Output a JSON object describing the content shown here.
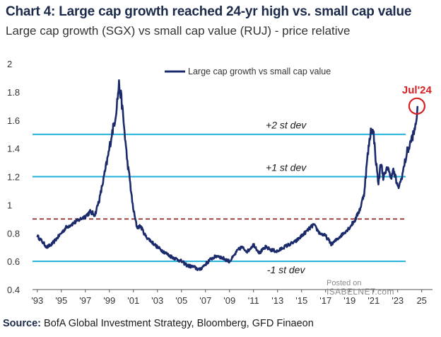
{
  "title": "Chart 4: Large cap growth reached 24-yr high vs. small cap value",
  "subtitle": "Large cap growth (SGX) vs small cap value (RUJ) - price relative",
  "source_label": "Source:",
  "source_text": " BofA Global Investment Strategy, Bloomberg, GFD Finaeon",
  "watermark": {
    "line1": "Posted on",
    "line2": "ISABELNET.com"
  },
  "colors": {
    "series": "#1b2a6b",
    "ref_lines": "#1fb0dc",
    "mean_line": "#8b1a1a",
    "annotation": "#d42020"
  },
  "chart_data": {
    "type": "line",
    "title": "Chart 4: Large cap growth reached 24-yr high vs. small cap value",
    "subtitle": "Large cap growth (SGX) vs small cap value (RUJ) - price relative",
    "xlabel": "",
    "ylabel": "",
    "xlim": [
      1992.6,
      2025.9
    ],
    "ylim": [
      0.4,
      2.0
    ],
    "yticks": [
      0.4,
      0.6,
      0.8,
      1.0,
      1.2,
      1.4,
      1.6,
      1.8,
      2.0
    ],
    "ytick_labels": [
      "0.4",
      "0.6",
      "0.8",
      "1",
      "1.2",
      "1.4",
      "1.6",
      "1.8",
      "2"
    ],
    "xticks": [
      1993,
      1995,
      1997,
      1999,
      2001,
      2003,
      2005,
      2007,
      2009,
      2011,
      2013,
      2015,
      2017,
      2019,
      2021,
      2023,
      2025
    ],
    "xtick_labels": [
      "'93",
      "'95",
      "'97",
      "'99",
      "'01",
      "'03",
      "'05",
      "'07",
      "'09",
      "'11",
      "'13",
      "'15",
      "'17",
      "'19",
      "'21",
      "'23",
      "25"
    ],
    "legend": {
      "position": "top-center"
    },
    "grid": false,
    "series": [
      {
        "name": "Large cap growth vs small cap value",
        "x": [
          1993.0,
          1993.4,
          1993.8,
          1994.2,
          1994.6,
          1995.0,
          1995.4,
          1995.8,
          1996.2,
          1996.6,
          1997.0,
          1997.4,
          1997.8,
          1998.2,
          1998.6,
          1998.9,
          1999.2,
          1999.5,
          1999.8,
          2000.0,
          2000.15,
          2000.3,
          2000.5,
          2000.7,
          2000.9,
          2001.1,
          2001.3,
          2001.6,
          2002.0,
          2002.5,
          2003.0,
          2003.5,
          2004.0,
          2004.5,
          2005.0,
          2005.5,
          2006.0,
          2006.5,
          2007.0,
          2007.5,
          2008.0,
          2008.5,
          2009.0,
          2009.3,
          2009.7,
          2010.0,
          2010.5,
          2011.0,
          2011.5,
          2012.0,
          2012.5,
          2013.0,
          2013.5,
          2014.0,
          2014.5,
          2015.0,
          2015.5,
          2016.0,
          2016.5,
          2017.0,
          2017.5,
          2018.0,
          2018.5,
          2019.0,
          2019.5,
          2019.9,
          2020.2,
          2020.5,
          2020.8,
          2021.0,
          2021.2,
          2021.4,
          2021.6,
          2021.8,
          2022.0,
          2022.2,
          2022.4,
          2022.6,
          2022.8,
          2023.0,
          2023.2,
          2023.4,
          2023.6,
          2023.8,
          2024.0,
          2024.2,
          2024.4,
          2024.55,
          2024.65
        ],
        "values": [
          0.78,
          0.74,
          0.7,
          0.72,
          0.76,
          0.8,
          0.84,
          0.86,
          0.88,
          0.9,
          0.92,
          0.95,
          0.93,
          1.05,
          1.22,
          1.35,
          1.5,
          1.62,
          1.85,
          1.75,
          1.62,
          1.48,
          1.3,
          1.18,
          1.02,
          0.92,
          0.84,
          0.85,
          0.78,
          0.74,
          0.7,
          0.67,
          0.64,
          0.62,
          0.6,
          0.57,
          0.56,
          0.54,
          0.58,
          0.62,
          0.64,
          0.62,
          0.6,
          0.63,
          0.68,
          0.7,
          0.67,
          0.72,
          0.66,
          0.7,
          0.68,
          0.67,
          0.7,
          0.72,
          0.74,
          0.78,
          0.82,
          0.86,
          0.8,
          0.78,
          0.72,
          0.76,
          0.8,
          0.84,
          0.9,
          0.98,
          1.08,
          1.35,
          1.55,
          1.5,
          1.3,
          1.15,
          1.3,
          1.2,
          1.22,
          1.28,
          1.18,
          1.25,
          1.2,
          1.12,
          1.15,
          1.22,
          1.3,
          1.38,
          1.42,
          1.48,
          1.52,
          1.6,
          1.7
        ]
      }
    ],
    "reference_lines": [
      {
        "y": 1.5,
        "label": "+2 st dev",
        "style": "solid"
      },
      {
        "y": 1.2,
        "label": "+1 st dev",
        "style": "solid"
      },
      {
        "y": 0.6,
        "label": "-1 st dev",
        "style": "solid"
      },
      {
        "y": 0.9,
        "label": "",
        "style": "dashed"
      }
    ],
    "annotation": {
      "label": "Jul'24",
      "x": 2024.6,
      "y": 1.7
    }
  }
}
